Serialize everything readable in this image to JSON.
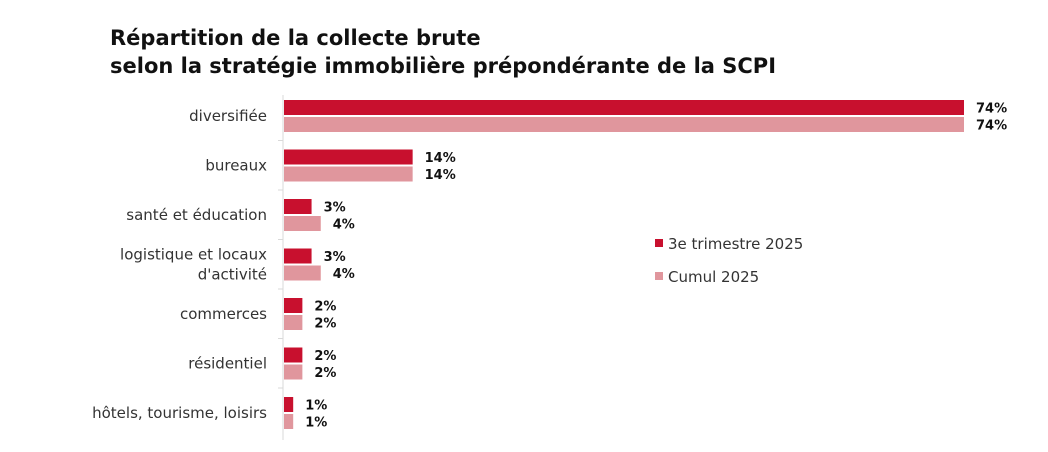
{
  "chart_data": {
    "type": "bar",
    "orientation": "horizontal",
    "title_line1": "Répartition de la collecte brute",
    "title_line2": "selon la stratégie immobilière prépondérante de la SCPI",
    "categories": [
      "diversifiée",
      "bureaux",
      "santé et éducation",
      "logistique et locaux d'activité",
      "commerces",
      "résidentiel",
      "hôtels, tourisme, loisirs"
    ],
    "series": [
      {
        "name": "3e trimestre 2025",
        "color": "#c8102e",
        "values": [
          74,
          14,
          3,
          3,
          2,
          2,
          1
        ],
        "labels": [
          "74%",
          "14%",
          "3%",
          "3%",
          "2%",
          "2%",
          "1%"
        ]
      },
      {
        "name": "Cumul 2025",
        "color": "#e0969d",
        "values": [
          74,
          14,
          4,
          4,
          2,
          2,
          1
        ],
        "labels": [
          "74%",
          "14%",
          "4%",
          "4%",
          "2%",
          "2%",
          "1%"
        ]
      }
    ],
    "xlim": [
      0,
      74
    ],
    "grid": false,
    "legend_position": "right"
  }
}
